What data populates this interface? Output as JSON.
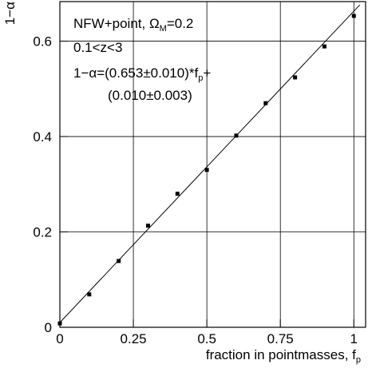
{
  "chart_data": {
    "type": "scatter",
    "x_label": [
      "fraction in pointmasses, f",
      "p"
    ],
    "y_label": "1−α",
    "annotations": [
      [
        "NFW+point, Ω",
        "M",
        "=0.2"
      ],
      [
        "0.1<z<3"
      ],
      [
        "1−α=(0.653±0.010)*f",
        "p",
        "+"
      ],
      [
        "(0.010±0.003)"
      ]
    ],
    "xlim": [
      0,
      1.04
    ],
    "ylim": [
      0,
      0.683
    ],
    "xticks": [
      0,
      0.25,
      0.5,
      0.75,
      1
    ],
    "yticks": [
      0,
      0.2,
      0.4,
      0.6
    ],
    "grid": true,
    "series": [
      {
        "color": "#000000",
        "marker": "square",
        "x": [
          0,
          0.1,
          0.2,
          0.3,
          0.4,
          0.5,
          0.6,
          0.7,
          0.8,
          0.9,
          1.0
        ],
        "values": [
          0.008,
          0.069,
          0.139,
          0.213,
          0.28,
          0.33,
          0.402,
          0.47,
          0.524,
          0.589,
          0.653
        ]
      },
      {
        "color": "#000000",
        "marker": "line",
        "x": [
          0,
          1.02
        ],
        "values": [
          0.01,
          0.676
        ]
      }
    ]
  }
}
